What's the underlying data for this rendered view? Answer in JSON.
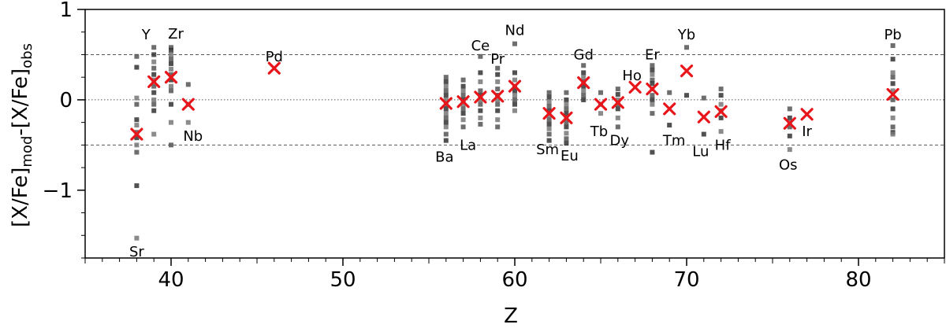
{
  "chart_data": {
    "type": "scatter",
    "title": "",
    "xlabel": "Z",
    "ylabel_parts": [
      "[X/Fe]",
      "mod",
      "-[X/Fe]",
      "obs"
    ],
    "xlim": [
      35,
      85
    ],
    "ylim": [
      -1.75,
      1.0
    ],
    "x_ticks_major": [
      40,
      50,
      60,
      70,
      80
    ],
    "x_tick_labels": [
      "40",
      "50",
      "60",
      "70",
      "80"
    ],
    "y_ticks_major": [
      -1,
      0,
      1
    ],
    "y_tick_labels": [
      "−1",
      "0",
      "1"
    ],
    "reference_lines": [
      {
        "y": 0.5,
        "style": "dashed"
      },
      {
        "y": 0.0,
        "style": "dotted"
      },
      {
        "y": -0.5,
        "style": "dashed"
      }
    ],
    "grid": false,
    "colors": {
      "mean_marker": "#e8161b",
      "model_points": "#555555"
    },
    "mean_points": [
      {
        "element": "Sr",
        "z": 38,
        "y": -0.38
      },
      {
        "element": "Y",
        "z": 39,
        "y": 0.2
      },
      {
        "element": "Zr",
        "z": 40,
        "y": 0.25
      },
      {
        "element": "Nb",
        "z": 41,
        "y": -0.05
      },
      {
        "element": "Pd",
        "z": 46,
        "y": 0.35
      },
      {
        "element": "Ba",
        "z": 56,
        "y": -0.04
      },
      {
        "element": "La",
        "z": 57,
        "y": -0.02
      },
      {
        "element": "Ce",
        "z": 58,
        "y": 0.03
      },
      {
        "element": "Pr",
        "z": 59,
        "y": 0.04
      },
      {
        "element": "Nd",
        "z": 60,
        "y": 0.15
      },
      {
        "element": "Sm",
        "z": 62,
        "y": -0.15
      },
      {
        "element": "Eu",
        "z": 63,
        "y": -0.2
      },
      {
        "element": "Gd",
        "z": 64,
        "y": 0.19
      },
      {
        "element": "Tb",
        "z": 65,
        "y": -0.05
      },
      {
        "element": "Dy",
        "z": 66,
        "y": -0.03
      },
      {
        "element": "Ho",
        "z": 67,
        "y": 0.14
      },
      {
        "element": "Er",
        "z": 68,
        "y": 0.12
      },
      {
        "element": "Tm",
        "z": 69,
        "y": -0.1
      },
      {
        "element": "Yb",
        "z": 70,
        "y": 0.32
      },
      {
        "element": "Lu",
        "z": 71,
        "y": -0.19
      },
      {
        "element": "Hf",
        "z": 72,
        "y": -0.13
      },
      {
        "element": "Os",
        "z": 76,
        "y": -0.26
      },
      {
        "element": "Ir",
        "z": 77,
        "y": -0.16
      },
      {
        "element": "Pb",
        "z": 82,
        "y": 0.06
      }
    ],
    "model_points": [
      {
        "z": 38,
        "y": [
          0.48,
          0.36,
          0.02,
          -0.05,
          -0.22,
          -0.28,
          -0.36,
          -0.42,
          -0.5,
          -0.58,
          -0.95,
          -1.53
        ]
      },
      {
        "z": 39,
        "y": [
          0.58,
          0.5,
          0.42,
          0.35,
          0.28,
          0.22,
          0.15,
          0.08,
          0.0,
          -0.05,
          -0.12,
          -0.38
        ]
      },
      {
        "z": 40,
        "y": [
          0.58,
          0.55,
          0.5,
          0.45,
          0.4,
          0.34,
          0.28,
          0.22,
          0.15,
          0.1,
          -0.05,
          -0.25,
          -0.5
        ]
      },
      {
        "z": 41,
        "y": [
          0.17,
          -0.05,
          -0.25
        ]
      },
      {
        "z": 56,
        "y": [
          0.25,
          0.2,
          0.15,
          0.1,
          0.05,
          0.0,
          -0.05,
          -0.1,
          -0.15,
          -0.2,
          -0.25,
          -0.3,
          -0.38,
          -0.45
        ]
      },
      {
        "z": 57,
        "y": [
          0.22,
          0.15,
          0.1,
          0.05,
          0.0,
          -0.05,
          -0.1,
          -0.15,
          -0.22,
          -0.3
        ]
      },
      {
        "z": 58,
        "y": [
          0.48,
          0.3,
          0.2,
          0.1,
          0.05,
          0.0,
          -0.05,
          -0.12,
          -0.2,
          -0.27
        ]
      },
      {
        "z": 59,
        "y": [
          0.35,
          0.28,
          0.2,
          0.12,
          0.05,
          0.0,
          -0.05,
          -0.12,
          -0.22,
          -0.3
        ]
      },
      {
        "z": 60,
        "y": [
          0.62,
          0.3,
          0.22,
          0.15,
          0.1,
          0.05,
          0.0,
          -0.05,
          -0.12
        ]
      },
      {
        "z": 62,
        "y": [
          0.08,
          0.03,
          -0.02,
          -0.07,
          -0.12,
          -0.17,
          -0.22,
          -0.27,
          -0.32,
          -0.38,
          -0.45
        ]
      },
      {
        "z": 63,
        "y": [
          0.08,
          0.0,
          -0.05,
          -0.1,
          -0.15,
          -0.2,
          -0.25,
          -0.3,
          -0.37,
          -0.43,
          -0.48
        ]
      },
      {
        "z": 64,
        "y": [
          0.38,
          0.3,
          0.25,
          0.2,
          0.15,
          0.1,
          0.05,
          0.0
        ]
      },
      {
        "z": 65,
        "y": [
          0.08,
          -0.05,
          -0.15
        ]
      },
      {
        "z": 66,
        "y": [
          0.12,
          0.06,
          0.0,
          -0.05,
          -0.1,
          -0.2,
          -0.3
        ]
      },
      {
        "z": 68,
        "y": [
          0.38,
          0.33,
          0.28,
          0.22,
          0.18,
          0.12,
          0.05,
          0.0,
          -0.05,
          -0.15,
          -0.58
        ]
      },
      {
        "z": 69,
        "y": [
          0.08,
          -0.28
        ]
      },
      {
        "z": 70,
        "y": [
          0.58,
          0.05
        ]
      },
      {
        "z": 71,
        "y": [
          0.02,
          -0.38
        ]
      },
      {
        "z": 72,
        "y": [
          0.12,
          0.05,
          -0.05,
          -0.12,
          -0.2,
          -0.35
        ]
      },
      {
        "z": 76,
        "y": [
          -0.1,
          -0.2,
          -0.25,
          -0.3,
          -0.4,
          -0.55
        ]
      },
      {
        "z": 82,
        "y": [
          0.6,
          0.45,
          0.3,
          0.25,
          0.18,
          0.1,
          0.0,
          -0.1,
          -0.2,
          -0.3,
          -0.36,
          -0.38
        ]
      }
    ],
    "labels": [
      {
        "element": "Sr",
        "z": 38,
        "y": -1.68,
        "anchor": "middle"
      },
      {
        "element": "Y",
        "z": 39,
        "y": 0.72,
        "anchor": "middle"
      },
      {
        "element": "Zr",
        "z": 40,
        "y": 0.73,
        "anchor": "middle"
      },
      {
        "element": "Nb",
        "z": 41,
        "y": -0.4,
        "anchor": "middle"
      },
      {
        "element": "Pd",
        "z": 46,
        "y": 0.48,
        "anchor": "middle"
      },
      {
        "element": "Ba",
        "z": 56,
        "y": -0.63,
        "anchor": "middle"
      },
      {
        "element": "La",
        "z": 57,
        "y": -0.5,
        "anchor": "middle"
      },
      {
        "element": "Ce",
        "z": 58,
        "y": 0.6,
        "anchor": "middle"
      },
      {
        "element": "Pr",
        "z": 59,
        "y": 0.45,
        "anchor": "middle"
      },
      {
        "element": "Nd",
        "z": 60,
        "y": 0.77,
        "anchor": "middle"
      },
      {
        "element": "Sm",
        "z": 62,
        "y": -0.55,
        "anchor": "middle"
      },
      {
        "element": "Eu",
        "z": 63,
        "y": -0.62,
        "anchor": "middle"
      },
      {
        "element": "Gd",
        "z": 64,
        "y": 0.5,
        "anchor": "middle"
      },
      {
        "element": "Tb",
        "z": 65,
        "y": -0.35,
        "anchor": "middle"
      },
      {
        "element": "Dy",
        "z": 66,
        "y": -0.45,
        "anchor": "middle"
      },
      {
        "element": "Ho",
        "z": 67,
        "y": 0.27,
        "anchor": "middle"
      },
      {
        "element": "Er",
        "z": 68,
        "y": 0.5,
        "anchor": "middle"
      },
      {
        "element": "Tm",
        "z": 69,
        "y": -0.45,
        "anchor": "middle"
      },
      {
        "element": "Yb",
        "z": 70,
        "y": 0.72,
        "anchor": "middle"
      },
      {
        "element": "Lu",
        "z": 71,
        "y": -0.57,
        "anchor": "middle"
      },
      {
        "element": "Hf",
        "z": 72,
        "y": -0.5,
        "anchor": "middle"
      },
      {
        "element": "Os",
        "z": 76,
        "y": -0.72,
        "anchor": "middle"
      },
      {
        "element": "Ir",
        "z": 77,
        "y": -0.35,
        "anchor": "middle"
      },
      {
        "element": "Pb",
        "z": 82,
        "y": 0.72,
        "anchor": "middle"
      }
    ]
  }
}
